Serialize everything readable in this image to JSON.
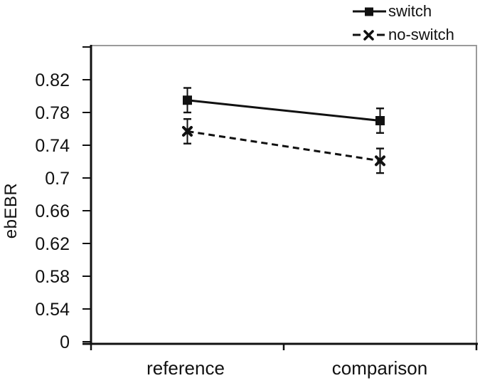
{
  "chart_data": {
    "type": "line",
    "title": "",
    "xlabel": "",
    "ylabel": "ebEBR",
    "categories": [
      "reference",
      "comparison"
    ],
    "series": [
      {
        "name": "switch",
        "values": [
          0.795,
          0.77
        ],
        "error": [
          0.015,
          0.015
        ],
        "line_style": "solid",
        "marker": "square"
      },
      {
        "name": "no-switch",
        "values": [
          0.757,
          0.721
        ],
        "error": [
          0.015,
          0.015
        ],
        "line_style": "dashed",
        "marker": "x"
      }
    ],
    "y_tick_labels": [
      "0.82",
      "0.78",
      "0.74",
      "0.7",
      "0.66",
      "0.62",
      "0.58",
      "0.54",
      "0"
    ],
    "y_tick_step": 0.04,
    "y_axis_note": "evenly spaced ticks, bottom tick labeled 0 (axis break), extra unlabeled tick above 0.82",
    "grid": false,
    "legend_position": "top-right",
    "colors": {
      "series": "#111111",
      "plot_border": "#9b9b9b",
      "axis": "#111111"
    }
  }
}
